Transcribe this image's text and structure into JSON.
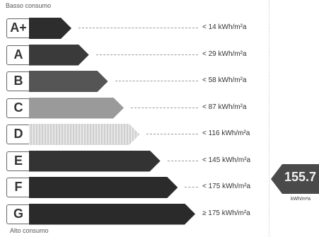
{
  "header_label": "Basso consumo",
  "footer_label": "Alto consumo",
  "classes": [
    {
      "letter": "A+",
      "value": "< 14 kWh/m²a",
      "color": "#2d2d2d",
      "length": 0.22
    },
    {
      "letter": "A",
      "value": "< 29 kWh/m²a",
      "color": "#3a3a3a",
      "length": 0.33
    },
    {
      "letter": "B",
      "value": "< 58 kWh/m²a",
      "color": "#555555",
      "length": 0.45
    },
    {
      "letter": "C",
      "value": "< 87 kWh/m²a",
      "color": "#9a9a9a",
      "length": 0.55
    },
    {
      "letter": "D",
      "value": "< 116 kWh/m²a",
      "color": "#dcdcdc",
      "length": 0.65
    },
    {
      "letter": "E",
      "value": "< 145 kWh/m²a",
      "color": "#333333",
      "length": 0.78
    },
    {
      "letter": "F",
      "value": "< 175 kWh/m²a",
      "color": "#2b2b2b",
      "length": 0.89
    },
    {
      "letter": "G",
      "value": "≥ 175 kWh/m²a",
      "color": "#2a2a2a",
      "length": 1.0
    }
  ],
  "indicator": {
    "value": "155.7",
    "unit": "kWh/m²a",
    "color": "#4a4a4a"
  }
}
